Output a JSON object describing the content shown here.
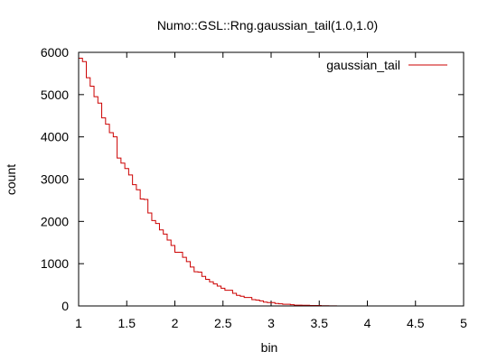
{
  "chart_data": {
    "type": "line",
    "step": true,
    "title": "Numo::GSL::Rng.gaussian_tail(1.0,1.0)",
    "xlabel": "bin",
    "ylabel": "count",
    "xlim": [
      1,
      5
    ],
    "ylim": [
      0,
      6000
    ],
    "x_ticks": [
      "1",
      "1.5",
      "2",
      "2.5",
      "3",
      "3.5",
      "4",
      "4.5",
      "5"
    ],
    "y_ticks": [
      "0",
      "1000",
      "2000",
      "3000",
      "4000",
      "5000",
      "6000"
    ],
    "grid": false,
    "legend": "top-right",
    "series": [
      {
        "name": "gaussian_tail",
        "color": "#cc0000",
        "x": [
          1.0,
          1.04,
          1.08,
          1.12,
          1.16,
          1.2,
          1.24,
          1.28,
          1.32,
          1.36,
          1.4,
          1.44,
          1.48,
          1.52,
          1.56,
          1.6,
          1.64,
          1.68,
          1.72,
          1.76,
          1.8,
          1.84,
          1.88,
          1.92,
          1.96,
          2.0,
          2.04,
          2.08,
          2.12,
          2.16,
          2.2,
          2.24,
          2.28,
          2.32,
          2.36,
          2.4,
          2.44,
          2.48,
          2.52,
          2.56,
          2.6,
          2.64,
          2.68,
          2.72,
          2.76,
          2.8,
          2.84,
          2.88,
          2.92,
          2.96,
          3.0,
          3.04,
          3.08,
          3.12,
          3.16,
          3.2,
          3.24,
          3.28,
          3.32,
          3.36,
          3.4,
          3.44,
          3.48,
          3.52,
          3.56,
          3.6,
          3.64,
          3.68,
          3.72
        ],
        "values": [
          5860,
          5780,
          5400,
          5200,
          4950,
          4800,
          4450,
          4300,
          4100,
          4000,
          3500,
          3380,
          3250,
          3100,
          2870,
          2750,
          2530,
          2520,
          2200,
          2020,
          1950,
          1800,
          1700,
          1560,
          1430,
          1270,
          1270,
          1150,
          1050,
          920,
          810,
          800,
          700,
          630,
          570,
          520,
          470,
          420,
          370,
          370,
          300,
          250,
          230,
          200,
          200,
          150,
          140,
          120,
          90,
          80,
          80,
          60,
          50,
          40,
          40,
          30,
          20,
          20,
          15,
          15,
          10,
          10,
          10,
          5,
          5,
          3,
          2,
          0,
          0
        ]
      }
    ]
  }
}
